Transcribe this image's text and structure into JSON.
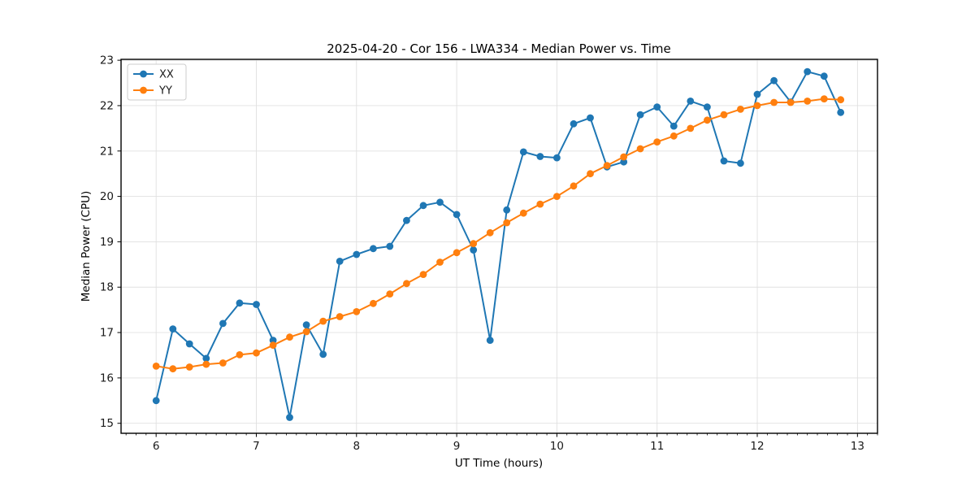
{
  "figure": {
    "background": "#ffffff"
  },
  "chart_data": {
    "type": "line",
    "title": "2025-04-20 - Cor 156 - LWA334 - Median Power vs. Time",
    "xlabel": "UT Time (hours)",
    "ylabel": "Median Power (CPU)",
    "xlim": [
      5.65,
      13.2
    ],
    "ylim": [
      14.78,
      23.02
    ],
    "x_ticks": [
      6,
      7,
      8,
      9,
      10,
      11,
      12,
      13
    ],
    "y_ticks": [
      15,
      16,
      17,
      18,
      19,
      20,
      21,
      22,
      23
    ],
    "x_minor_tick_step": 0.1,
    "grid": true,
    "legend_position": "upper left",
    "x": [
      6.0,
      6.167,
      6.333,
      6.5,
      6.667,
      6.833,
      7.0,
      7.167,
      7.333,
      7.5,
      7.667,
      7.833,
      8.0,
      8.167,
      8.333,
      8.5,
      8.667,
      8.833,
      9.0,
      9.167,
      9.333,
      9.5,
      9.667,
      9.833,
      10.0,
      10.167,
      10.333,
      10.5,
      10.667,
      10.833,
      11.0,
      11.167,
      11.333,
      11.5,
      11.667,
      11.833,
      12.0,
      12.167,
      12.333,
      12.5,
      12.667,
      12.833
    ],
    "series": [
      {
        "name": "XX",
        "color": "#1f77b4",
        "values": [
          15.5,
          17.08,
          16.75,
          16.43,
          17.2,
          17.65,
          17.62,
          16.83,
          15.13,
          17.17,
          16.52,
          18.57,
          18.72,
          18.85,
          18.9,
          19.47,
          19.8,
          19.87,
          19.6,
          18.82,
          16.83,
          19.7,
          20.98,
          20.88,
          20.85,
          21.6,
          21.73,
          20.65,
          20.76,
          21.8,
          21.97,
          21.55,
          22.1,
          21.97,
          20.78,
          20.73,
          22.25,
          22.55,
          22.08,
          22.75,
          22.65,
          21.85
        ]
      },
      {
        "name": "YY",
        "color": "#ff7f0e",
        "values": [
          16.26,
          16.2,
          16.24,
          16.3,
          16.33,
          16.51,
          16.55,
          16.72,
          16.9,
          17.02,
          17.25,
          17.35,
          17.46,
          17.64,
          17.85,
          18.08,
          18.28,
          18.55,
          18.76,
          18.96,
          19.2,
          19.42,
          19.63,
          19.83,
          20.0,
          20.23,
          20.5,
          20.68,
          20.87,
          21.05,
          21.2,
          21.33,
          21.5,
          21.68,
          21.8,
          21.92,
          22.0,
          22.07,
          22.07,
          22.1,
          22.15,
          22.13
        ]
      }
    ]
  },
  "style": {
    "grid_color": "#e0e0e0",
    "spine_color": "#000000",
    "tick_color": "#000000",
    "text_color": "#1a1a1a",
    "legend_border_color": "#cccccc",
    "legend_bg_color": "#ffffff"
  }
}
